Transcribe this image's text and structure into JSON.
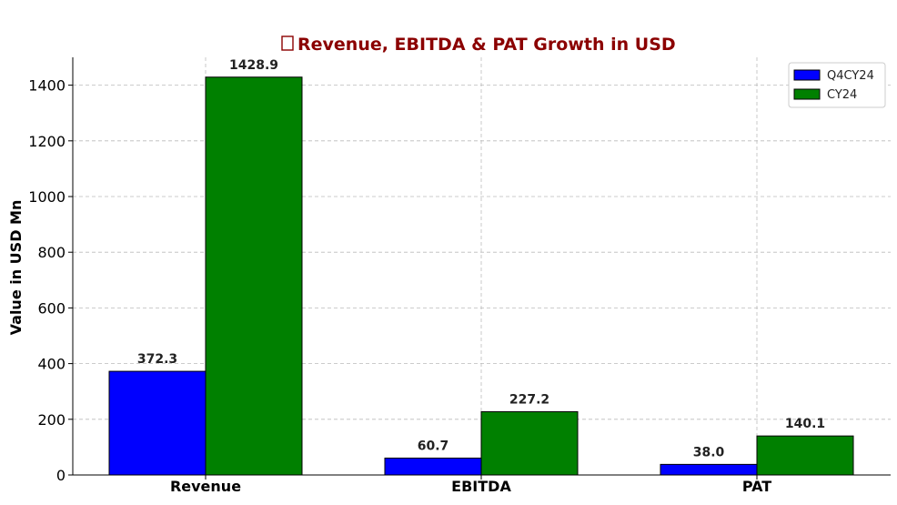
{
  "chart_data": {
    "type": "bar",
    "title": "Revenue, EBITDA & PAT Growth in USD",
    "title_icon": "chart-icon",
    "title_color": "#8b0000",
    "xlabel": "",
    "ylabel": "Value in USD Mn",
    "categories": [
      "Revenue",
      "EBITDA",
      "PAT"
    ],
    "series": [
      {
        "name": "Q4CY24",
        "color": "#0000ff",
        "values": [
          372.3,
          60.7,
          38.0
        ]
      },
      {
        "name": "CY24",
        "color": "#008000",
        "values": [
          1428.9,
          227.2,
          140.1
        ]
      }
    ],
    "value_labels": [
      [
        "372.3",
        "60.7",
        "38.0"
      ],
      [
        "1428.9",
        "227.2",
        "140.1"
      ]
    ],
    "ylim": [
      0,
      1500
    ],
    "yticks": [
      0,
      200,
      400,
      600,
      800,
      1000,
      1200,
      1400
    ],
    "ytick_labels": [
      "0",
      "200",
      "400",
      "600",
      "800",
      "1000",
      "1200",
      "1400"
    ],
    "grid": true,
    "legend_position": "top-right"
  }
}
